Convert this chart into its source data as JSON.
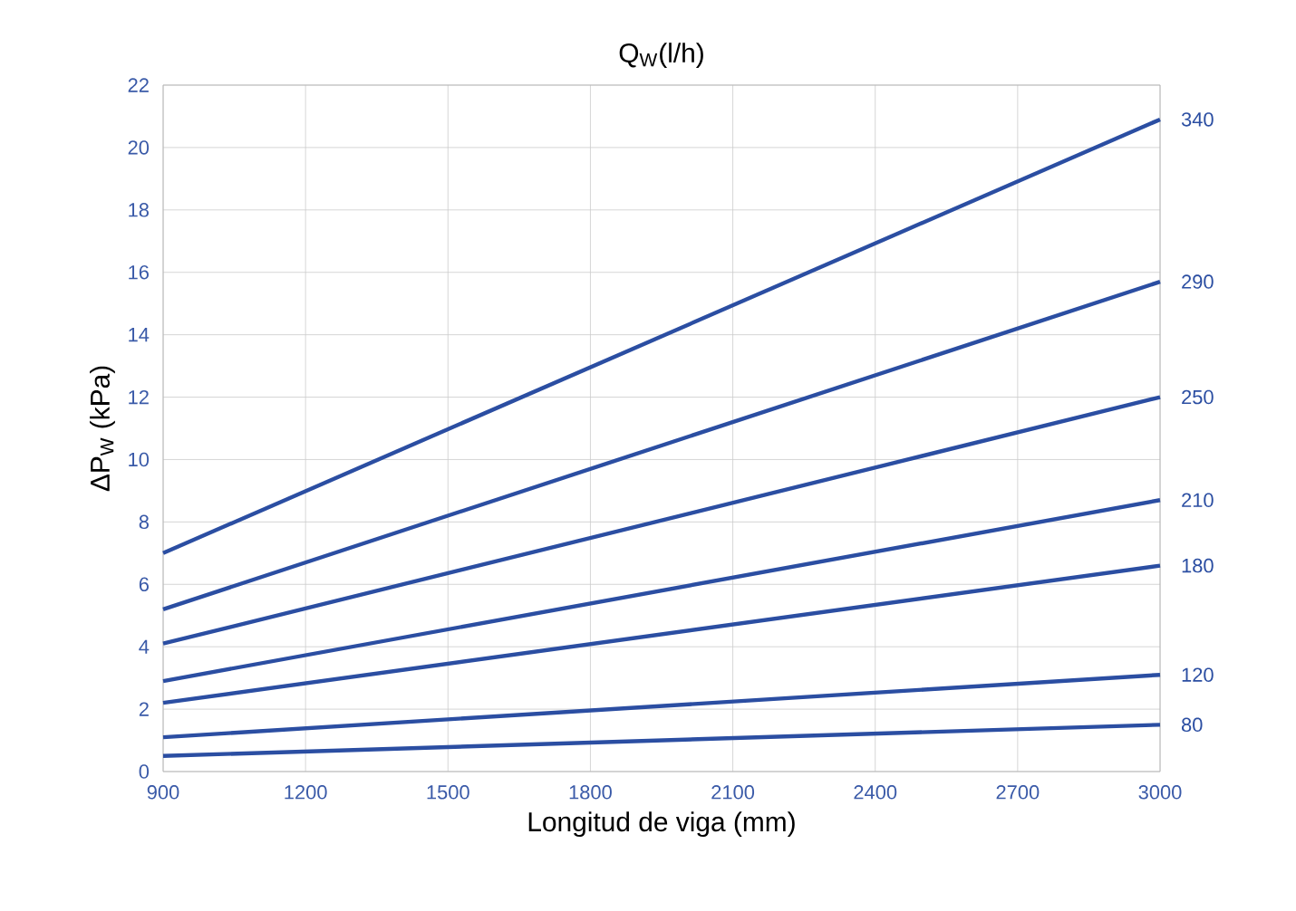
{
  "chart_data": {
    "type": "line",
    "title": "Q$_{W}$(l/h)",
    "xlabel": "Longitud de viga (mm)",
    "ylabel": "ΔP$_{W}$ (kPa)",
    "x": [
      900,
      3000
    ],
    "series": [
      {
        "name": "340",
        "color": "#2b4ea2",
        "values": [
          7.0,
          20.9
        ]
      },
      {
        "name": "290",
        "color": "#2b4ea2",
        "values": [
          5.2,
          15.7
        ]
      },
      {
        "name": "250",
        "color": "#2b4ea2",
        "values": [
          4.1,
          12.0
        ]
      },
      {
        "name": "210",
        "color": "#2b4ea2",
        "values": [
          2.9,
          8.7
        ]
      },
      {
        "name": "180",
        "color": "#2b4ea2",
        "values": [
          2.2,
          6.6
        ]
      },
      {
        "name": "120",
        "color": "#2b4ea2",
        "values": [
          1.1,
          3.1
        ]
      },
      {
        "name": "80",
        "color": "#2b4ea2",
        "values": [
          0.5,
          1.5
        ]
      }
    ],
    "xlim": [
      900,
      3000
    ],
    "xticks": [
      900,
      1200,
      1500,
      1800,
      2100,
      2400,
      2700,
      3000
    ],
    "ylim": [
      0,
      22
    ],
    "yticks": [
      0,
      2,
      4,
      6,
      8,
      10,
      12,
      14,
      16,
      18,
      20,
      22
    ],
    "grid": true,
    "marker": "none",
    "line_style": "solid"
  }
}
